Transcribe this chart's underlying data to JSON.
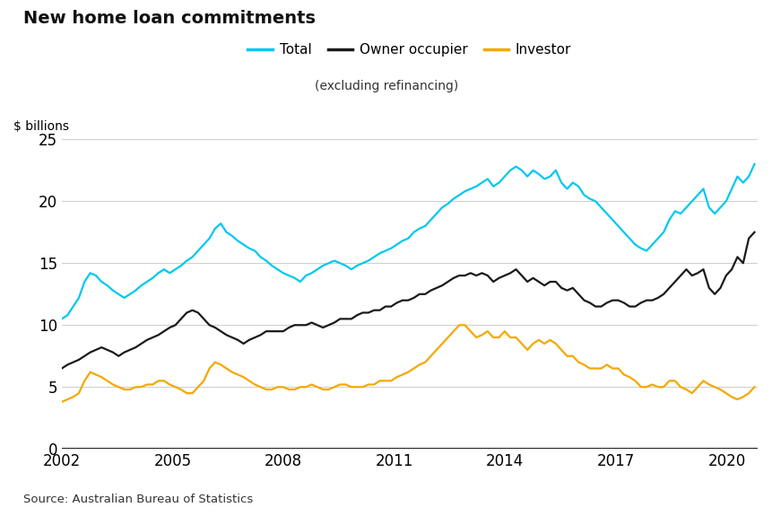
{
  "title": "New home loan commitments",
  "ylabel": "$ billions",
  "subtitle_legend": "(excluding refinancing)",
  "source": "Source: Australian Bureau of Statistics",
  "ylim": [
    0,
    25
  ],
  "yticks": [
    0,
    5,
    10,
    15,
    20,
    25
  ],
  "xlim": [
    2002.0,
    2020.83
  ],
  "xticks": [
    2002,
    2005,
    2008,
    2011,
    2014,
    2017,
    2020
  ],
  "background_color": "#ffffff",
  "grid_color": "#d0d0d0",
  "colors": {
    "total": "#00c8f0",
    "owner": "#1a1a1a",
    "investor": "#f5a800"
  },
  "legend_labels": [
    "Total",
    "Owner occupier",
    "Investor"
  ],
  "line_width": 1.6,
  "total": [
    10.5,
    10.8,
    11.5,
    12.2,
    13.5,
    14.2,
    14.0,
    13.5,
    13.2,
    12.8,
    12.5,
    12.2,
    12.5,
    12.8,
    13.2,
    13.5,
    13.8,
    14.2,
    14.5,
    14.2,
    14.5,
    14.8,
    15.2,
    15.5,
    16.0,
    16.5,
    17.0,
    17.8,
    18.2,
    17.5,
    17.2,
    16.8,
    16.5,
    16.2,
    16.0,
    15.5,
    15.2,
    14.8,
    14.5,
    14.2,
    14.0,
    13.8,
    13.5,
    14.0,
    14.2,
    14.5,
    14.8,
    15.0,
    15.2,
    15.0,
    14.8,
    14.5,
    14.8,
    15.0,
    15.2,
    15.5,
    15.8,
    16.0,
    16.2,
    16.5,
    16.8,
    17.0,
    17.5,
    17.8,
    18.0,
    18.5,
    19.0,
    19.5,
    19.8,
    20.2,
    20.5,
    20.8,
    21.0,
    21.2,
    21.5,
    21.8,
    21.2,
    21.5,
    22.0,
    22.5,
    22.8,
    22.5,
    22.0,
    22.5,
    22.2,
    21.8,
    22.0,
    22.5,
    21.5,
    21.0,
    21.5,
    21.2,
    20.5,
    20.2,
    20.0,
    19.5,
    19.0,
    18.5,
    18.0,
    17.5,
    17.0,
    16.5,
    16.2,
    16.0,
    16.5,
    17.0,
    17.5,
    18.5,
    19.2,
    19.0,
    19.5,
    20.0,
    20.5,
    21.0,
    19.5,
    19.0,
    19.5,
    20.0,
    21.0,
    22.0,
    21.5,
    22.0,
    23.0
  ],
  "owner": [
    6.5,
    6.8,
    7.0,
    7.2,
    7.5,
    7.8,
    8.0,
    8.2,
    8.0,
    7.8,
    7.5,
    7.8,
    8.0,
    8.2,
    8.5,
    8.8,
    9.0,
    9.2,
    9.5,
    9.8,
    10.0,
    10.5,
    11.0,
    11.2,
    11.0,
    10.5,
    10.0,
    9.8,
    9.5,
    9.2,
    9.0,
    8.8,
    8.5,
    8.8,
    9.0,
    9.2,
    9.5,
    9.5,
    9.5,
    9.5,
    9.8,
    10.0,
    10.0,
    10.0,
    10.2,
    10.0,
    9.8,
    10.0,
    10.2,
    10.5,
    10.5,
    10.5,
    10.8,
    11.0,
    11.0,
    11.2,
    11.2,
    11.5,
    11.5,
    11.8,
    12.0,
    12.0,
    12.2,
    12.5,
    12.5,
    12.8,
    13.0,
    13.2,
    13.5,
    13.8,
    14.0,
    14.0,
    14.2,
    14.0,
    14.2,
    14.0,
    13.5,
    13.8,
    14.0,
    14.2,
    14.5,
    14.0,
    13.5,
    13.8,
    13.5,
    13.2,
    13.5,
    13.5,
    13.0,
    12.8,
    13.0,
    12.5,
    12.0,
    11.8,
    11.5,
    11.5,
    11.8,
    12.0,
    12.0,
    11.8,
    11.5,
    11.5,
    11.8,
    12.0,
    12.0,
    12.2,
    12.5,
    13.0,
    13.5,
    14.0,
    14.5,
    14.0,
    14.2,
    14.5,
    13.0,
    12.5,
    13.0,
    14.0,
    14.5,
    15.5,
    15.0,
    17.0,
    17.5
  ],
  "investor": [
    3.8,
    4.0,
    4.2,
    4.5,
    5.5,
    6.2,
    6.0,
    5.8,
    5.5,
    5.2,
    5.0,
    4.8,
    4.8,
    5.0,
    5.0,
    5.2,
    5.2,
    5.5,
    5.5,
    5.2,
    5.0,
    4.8,
    4.5,
    4.5,
    5.0,
    5.5,
    6.5,
    7.0,
    6.8,
    6.5,
    6.2,
    6.0,
    5.8,
    5.5,
    5.2,
    5.0,
    4.8,
    4.8,
    5.0,
    5.0,
    4.8,
    4.8,
    5.0,
    5.0,
    5.2,
    5.0,
    4.8,
    4.8,
    5.0,
    5.2,
    5.2,
    5.0,
    5.0,
    5.0,
    5.2,
    5.2,
    5.5,
    5.5,
    5.5,
    5.8,
    6.0,
    6.2,
    6.5,
    6.8,
    7.0,
    7.5,
    8.0,
    8.5,
    9.0,
    9.5,
    10.0,
    10.0,
    9.5,
    9.0,
    9.2,
    9.5,
    9.0,
    9.0,
    9.5,
    9.0,
    9.0,
    8.5,
    8.0,
    8.5,
    8.8,
    8.5,
    8.8,
    8.5,
    8.0,
    7.5,
    7.5,
    7.0,
    6.8,
    6.5,
    6.5,
    6.5,
    6.8,
    6.5,
    6.5,
    6.0,
    5.8,
    5.5,
    5.0,
    5.0,
    5.2,
    5.0,
    5.0,
    5.5,
    5.5,
    5.0,
    4.8,
    4.5,
    5.0,
    5.5,
    5.2,
    5.0,
    4.8,
    4.5,
    4.2,
    4.0,
    4.2,
    4.5,
    5.0
  ]
}
